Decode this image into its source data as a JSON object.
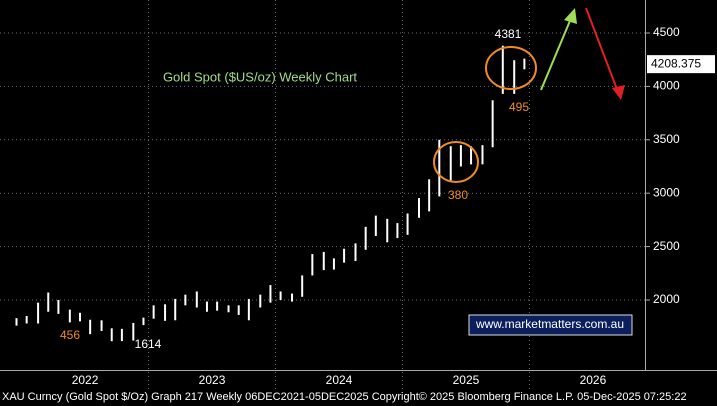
{
  "chart_data": {
    "type": "range-bar",
    "title": "Gold Spot ($US/oz) Weekly Chart",
    "x": [
      2021.96,
      2022.04,
      2022.13,
      2022.21,
      2022.29,
      2022.38,
      2022.46,
      2022.54,
      2022.63,
      2022.71,
      2022.79,
      2022.88,
      2022.96,
      2023.04,
      2023.13,
      2023.21,
      2023.29,
      2023.38,
      2023.46,
      2023.54,
      2023.63,
      2023.71,
      2023.79,
      2023.88,
      2023.96,
      2024.04,
      2024.13,
      2024.21,
      2024.29,
      2024.38,
      2024.46,
      2024.54,
      2024.63,
      2024.71,
      2024.79,
      2024.88,
      2024.96,
      2025.04,
      2025.13,
      2025.21,
      2025.29,
      2025.38,
      2025.46,
      2025.54,
      2025.63,
      2025.71,
      2025.79,
      2025.88,
      2025.96
    ],
    "high": [
      1830,
      1850,
      1975,
      2070,
      2000,
      1910,
      1880,
      1815,
      1810,
      1735,
      1730,
      1785,
      1835,
      1950,
      1960,
      2010,
      2050,
      2080,
      1985,
      1985,
      1950,
      1950,
      2010,
      2050,
      2140,
      2080,
      2060,
      2230,
      2430,
      2450,
      2390,
      2480,
      2530,
      2685,
      2790,
      2760,
      2720,
      2810,
      2955,
      3130,
      3500,
      3440,
      3450,
      3440,
      3450,
      3870,
      4381,
      4245,
      4260
    ],
    "low": [
      1760,
      1780,
      1780,
      1890,
      1870,
      1790,
      1800,
      1680,
      1710,
      1614,
      1615,
      1620,
      1765,
      1825,
      1805,
      1810,
      1950,
      1930,
      1890,
      1900,
      1885,
      1860,
      1810,
      1930,
      1975,
      2000,
      1985,
      2030,
      2230,
      2280,
      2285,
      2350,
      2365,
      2470,
      2600,
      2540,
      2580,
      2610,
      2770,
      2830,
      2970,
      3120,
      3250,
      3270,
      3270,
      3430,
      3930,
      3930,
      4160
    ],
    "color": "#ffffff",
    "xlim": [
      2021.83,
      2026.91
    ],
    "xticks": [
      {
        "value": 2022.5,
        "label": "2022"
      },
      {
        "value": 2023.5,
        "label": "2023"
      },
      {
        "value": 2024.5,
        "label": "2024"
      },
      {
        "value": 2025.5,
        "label": "2025"
      },
      {
        "value": 2026.5,
        "label": "2026"
      }
    ],
    "xgrid": [
      2023,
      2024,
      2025,
      2026
    ],
    "ylim": [
      1485,
      4809
    ],
    "yticks": [
      2000,
      2500,
      3000,
      3500,
      4000,
      4500
    ],
    "grid": true,
    "last_price": 4208.375,
    "annotations": [
      {
        "text": "4381",
        "color": "#ffffff"
      },
      {
        "text": "495",
        "color": "#f08a24"
      },
      {
        "text": "380",
        "color": "#f08a24"
      },
      {
        "text": "456",
        "color": "#f08a24"
      },
      {
        "text": "1614",
        "color": "#ffffff"
      }
    ],
    "watermark": "www.marketmatters.com.au",
    "footer": "XAU Curncy (Gold Spot  $/Oz) Graph 217 Weekly 06DEC2021-05DEC2025 Copyright© 2025 Bloomberg Finance L.P. 05-Dec-2025 07:25:22"
  }
}
